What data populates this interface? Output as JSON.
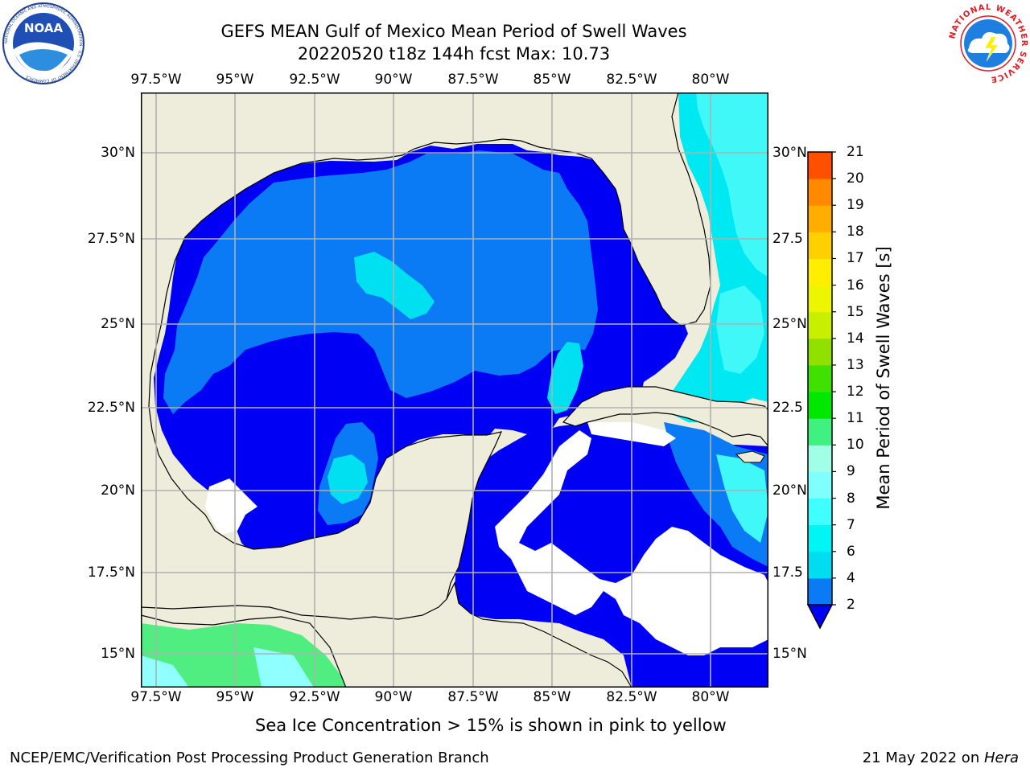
{
  "header": {
    "title_line1": "GEFS MEAN Gulf of Mexico Mean Period of Swell Waves",
    "title_line2": "20220520 t18z 144h fcst   Max: 10.73"
  },
  "logos": {
    "noaa_text": "NOAA",
    "noaa_ring": "NATIONAL OCEANIC AND ATMOSPHERIC ADMINISTRATION · U.S. DEPARTMENT OF COMMERCE",
    "nws_ring": "NATIONAL WEATHER SERVICE"
  },
  "map": {
    "lon_labels": [
      "97.5°W",
      "95°W",
      "92.5°W",
      "90°W",
      "87.5°W",
      "85°W",
      "82.5°W",
      "80°W"
    ],
    "lat_labels_left": [
      "30°N",
      "27.5°N",
      "25°N",
      "22.5°N",
      "20°N",
      "17.5°N",
      "15°N"
    ],
    "lat_labels_right": [
      "30°N",
      "27.5",
      "25°N",
      "22.5",
      "20°N",
      "17.5",
      "15°N"
    ]
  },
  "colorbar": {
    "title": "Mean Period of Swell Waves [s]",
    "ticks": [
      "2",
      "4",
      "6",
      "7",
      "8",
      "9",
      "10",
      "11",
      "12",
      "13",
      "14",
      "15",
      "16",
      "17",
      "18",
      "19",
      "20",
      "21"
    ],
    "colors": [
      "#0a7af5",
      "#00dcf0",
      "#00f5f5",
      "#40ffff",
      "#80ffff",
      "#a0ffe6",
      "#40f080",
      "#00e800",
      "#40e000",
      "#90e000",
      "#c8ee00",
      "#eef500",
      "#ffee00",
      "#ffd000",
      "#ffae00",
      "#ff8a00",
      "#ff5000",
      "#ff2000",
      "#ff0000"
    ]
  },
  "legend_colors": {
    "land": "#eeeddc",
    "period_below_2": "#0000f5",
    "period_2_4": "#0a7af5",
    "period_4_6": "#00e0f0",
    "period_6_8": "#40f5f5",
    "period_8_9": "#90ffff",
    "period_9_10": "#50ee80",
    "no_data": "#ffffff"
  },
  "note": "Sea Ice Concentration > 15% is shown in pink to yellow",
  "footer": {
    "credit": "NCEP/EMC/Verification Post Processing Product Generation Branch",
    "date": "21 May 2022 on ",
    "host": "Hera"
  }
}
